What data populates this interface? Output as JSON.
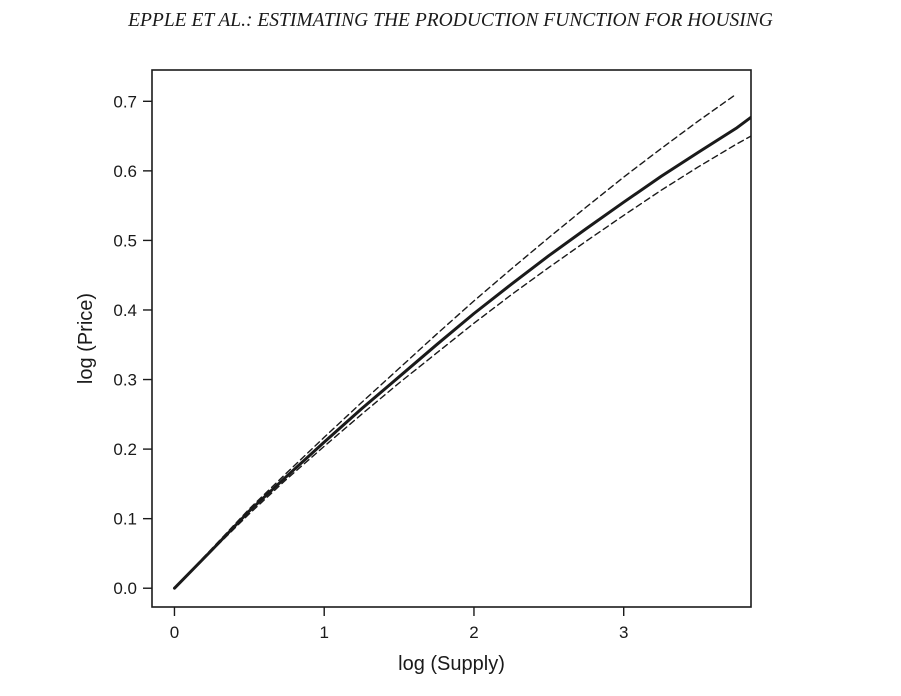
{
  "page": {
    "header": "EPPLE ET AL.: ESTIMATING THE PRODUCTION FUNCTION FOR HOUSING"
  },
  "chart_data": {
    "type": "line",
    "title": "",
    "xlabel": "log (Supply)",
    "ylabel": "log (Price)",
    "xlim": [
      -0.15,
      3.85
    ],
    "ylim": [
      -0.027,
      0.745
    ],
    "xticks": [
      0,
      1,
      2,
      3
    ],
    "xtick_labels": [
      "0",
      "1",
      "2",
      "3"
    ],
    "yticks": [
      0.0,
      0.1,
      0.2,
      0.3,
      0.4,
      0.5,
      0.6,
      0.7
    ],
    "ytick_labels": [
      "0.0",
      "0.1",
      "0.2",
      "0.3",
      "0.4",
      "0.5",
      "0.6",
      "0.7"
    ],
    "grid": false,
    "legend": "none",
    "series": [
      {
        "style": "solid",
        "color": "#1a1a1a",
        "x": [
          0,
          0.25,
          0.5,
          0.75,
          1.0,
          1.25,
          1.5,
          1.75,
          2.0,
          2.25,
          2.5,
          2.75,
          3.0,
          3.25,
          3.5,
          3.75,
          3.85
        ],
        "y": [
          0.0,
          0.055,
          0.111,
          0.161,
          0.21,
          0.258,
          0.304,
          0.35,
          0.395,
          0.437,
          0.478,
          0.517,
          0.555,
          0.592,
          0.627,
          0.661,
          0.677
        ]
      },
      {
        "style": "dashed",
        "color": "#1a1a1a",
        "x": [
          0,
          0.25,
          0.5,
          0.75,
          1.0,
          1.25,
          1.5,
          1.75,
          2.0,
          2.25,
          2.5,
          2.75,
          3.0,
          3.25,
          3.5,
          3.75
        ],
        "y": [
          0.0,
          0.057,
          0.114,
          0.166,
          0.217,
          0.267,
          0.316,
          0.365,
          0.413,
          0.459,
          0.504,
          0.548,
          0.591,
          0.632,
          0.672,
          0.71
        ]
      },
      {
        "style": "dashed",
        "color": "#1a1a1a",
        "x": [
          0,
          0.25,
          0.5,
          0.75,
          1.0,
          1.25,
          1.5,
          1.75,
          2.0,
          2.25,
          2.5,
          2.75,
          3.0,
          3.25,
          3.5,
          3.75,
          3.85
        ],
        "y": [
          0.0,
          0.054,
          0.107,
          0.157,
          0.204,
          0.25,
          0.295,
          0.338,
          0.381,
          0.422,
          0.461,
          0.499,
          0.536,
          0.572,
          0.606,
          0.638,
          0.65
        ]
      }
    ]
  }
}
